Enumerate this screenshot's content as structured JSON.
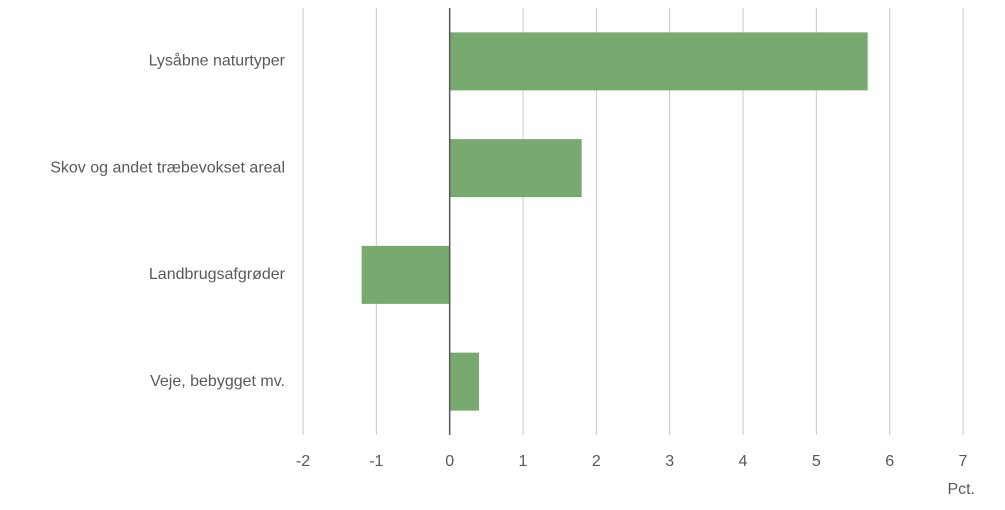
{
  "chart_data": {
    "type": "hbar",
    "categories": [
      "Lysåbne naturtyper",
      "Skov og andet træbevokset areal",
      "Landbrugsafgrøder",
      "Veje, bebygget mv."
    ],
    "values": [
      5.7,
      1.8,
      -1.2,
      0.4
    ],
    "color": "#78aa6f",
    "xlim": [
      -2,
      7
    ],
    "xticks": [
      -2,
      -1,
      0,
      1,
      2,
      3,
      4,
      5,
      6,
      7
    ],
    "x_label": "Pct.",
    "grid": true
  }
}
